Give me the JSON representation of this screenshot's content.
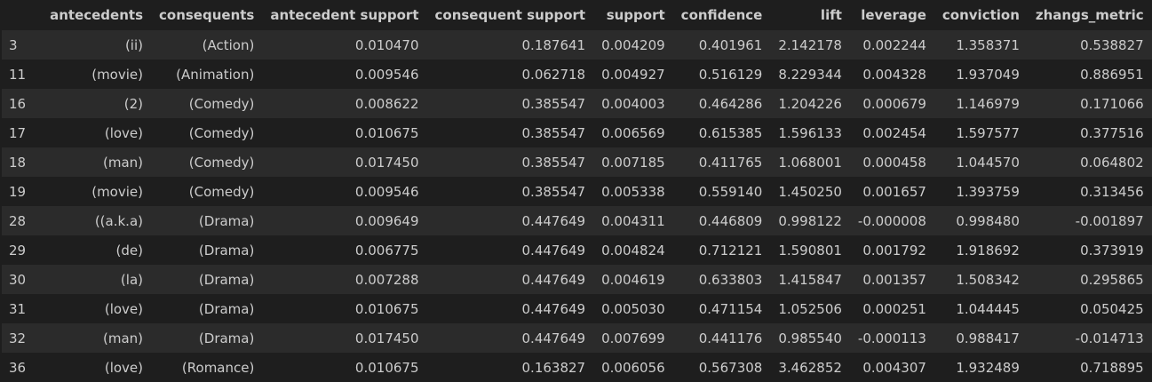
{
  "table": {
    "columns": [
      "",
      "antecedents",
      "consequents",
      "antecedent support",
      "consequent support",
      "support",
      "confidence",
      "lift",
      "leverage",
      "conviction",
      "zhangs_metric"
    ],
    "rows": [
      [
        "3",
        "(ii)",
        "(Action)",
        "0.010470",
        "0.187641",
        "0.004209",
        "0.401961",
        "2.142178",
        "0.002244",
        "1.358371",
        "0.538827"
      ],
      [
        "11",
        "(movie)",
        "(Animation)",
        "0.009546",
        "0.062718",
        "0.004927",
        "0.516129",
        "8.229344",
        "0.004328",
        "1.937049",
        "0.886951"
      ],
      [
        "16",
        "(2)",
        "(Comedy)",
        "0.008622",
        "0.385547",
        "0.004003",
        "0.464286",
        "1.204226",
        "0.000679",
        "1.146979",
        "0.171066"
      ],
      [
        "17",
        "(love)",
        "(Comedy)",
        "0.010675",
        "0.385547",
        "0.006569",
        "0.615385",
        "1.596133",
        "0.002454",
        "1.597577",
        "0.377516"
      ],
      [
        "18",
        "(man)",
        "(Comedy)",
        "0.017450",
        "0.385547",
        "0.007185",
        "0.411765",
        "1.068001",
        "0.000458",
        "1.044570",
        "0.064802"
      ],
      [
        "19",
        "(movie)",
        "(Comedy)",
        "0.009546",
        "0.385547",
        "0.005338",
        "0.559140",
        "1.450250",
        "0.001657",
        "1.393759",
        "0.313456"
      ],
      [
        "28",
        "((a.k.a)",
        "(Drama)",
        "0.009649",
        "0.447649",
        "0.004311",
        "0.446809",
        "0.998122",
        "-0.000008",
        "0.998480",
        "-0.001897"
      ],
      [
        "29",
        "(de)",
        "(Drama)",
        "0.006775",
        "0.447649",
        "0.004824",
        "0.712121",
        "1.590801",
        "0.001792",
        "1.918692",
        "0.373919"
      ],
      [
        "30",
        "(la)",
        "(Drama)",
        "0.007288",
        "0.447649",
        "0.004619",
        "0.633803",
        "1.415847",
        "0.001357",
        "1.508342",
        "0.295865"
      ],
      [
        "31",
        "(love)",
        "(Drama)",
        "0.010675",
        "0.447649",
        "0.005030",
        "0.471154",
        "1.052506",
        "0.000251",
        "1.044445",
        "0.050425"
      ],
      [
        "32",
        "(man)",
        "(Drama)",
        "0.017450",
        "0.447649",
        "0.007699",
        "0.441176",
        "0.985540",
        "-0.000113",
        "0.988417",
        "-0.014713"
      ],
      [
        "36",
        "(love)",
        "(Romance)",
        "0.010675",
        "0.163827",
        "0.006056",
        "0.567308",
        "3.462852",
        "0.004307",
        "1.932489",
        "0.718895"
      ]
    ]
  }
}
